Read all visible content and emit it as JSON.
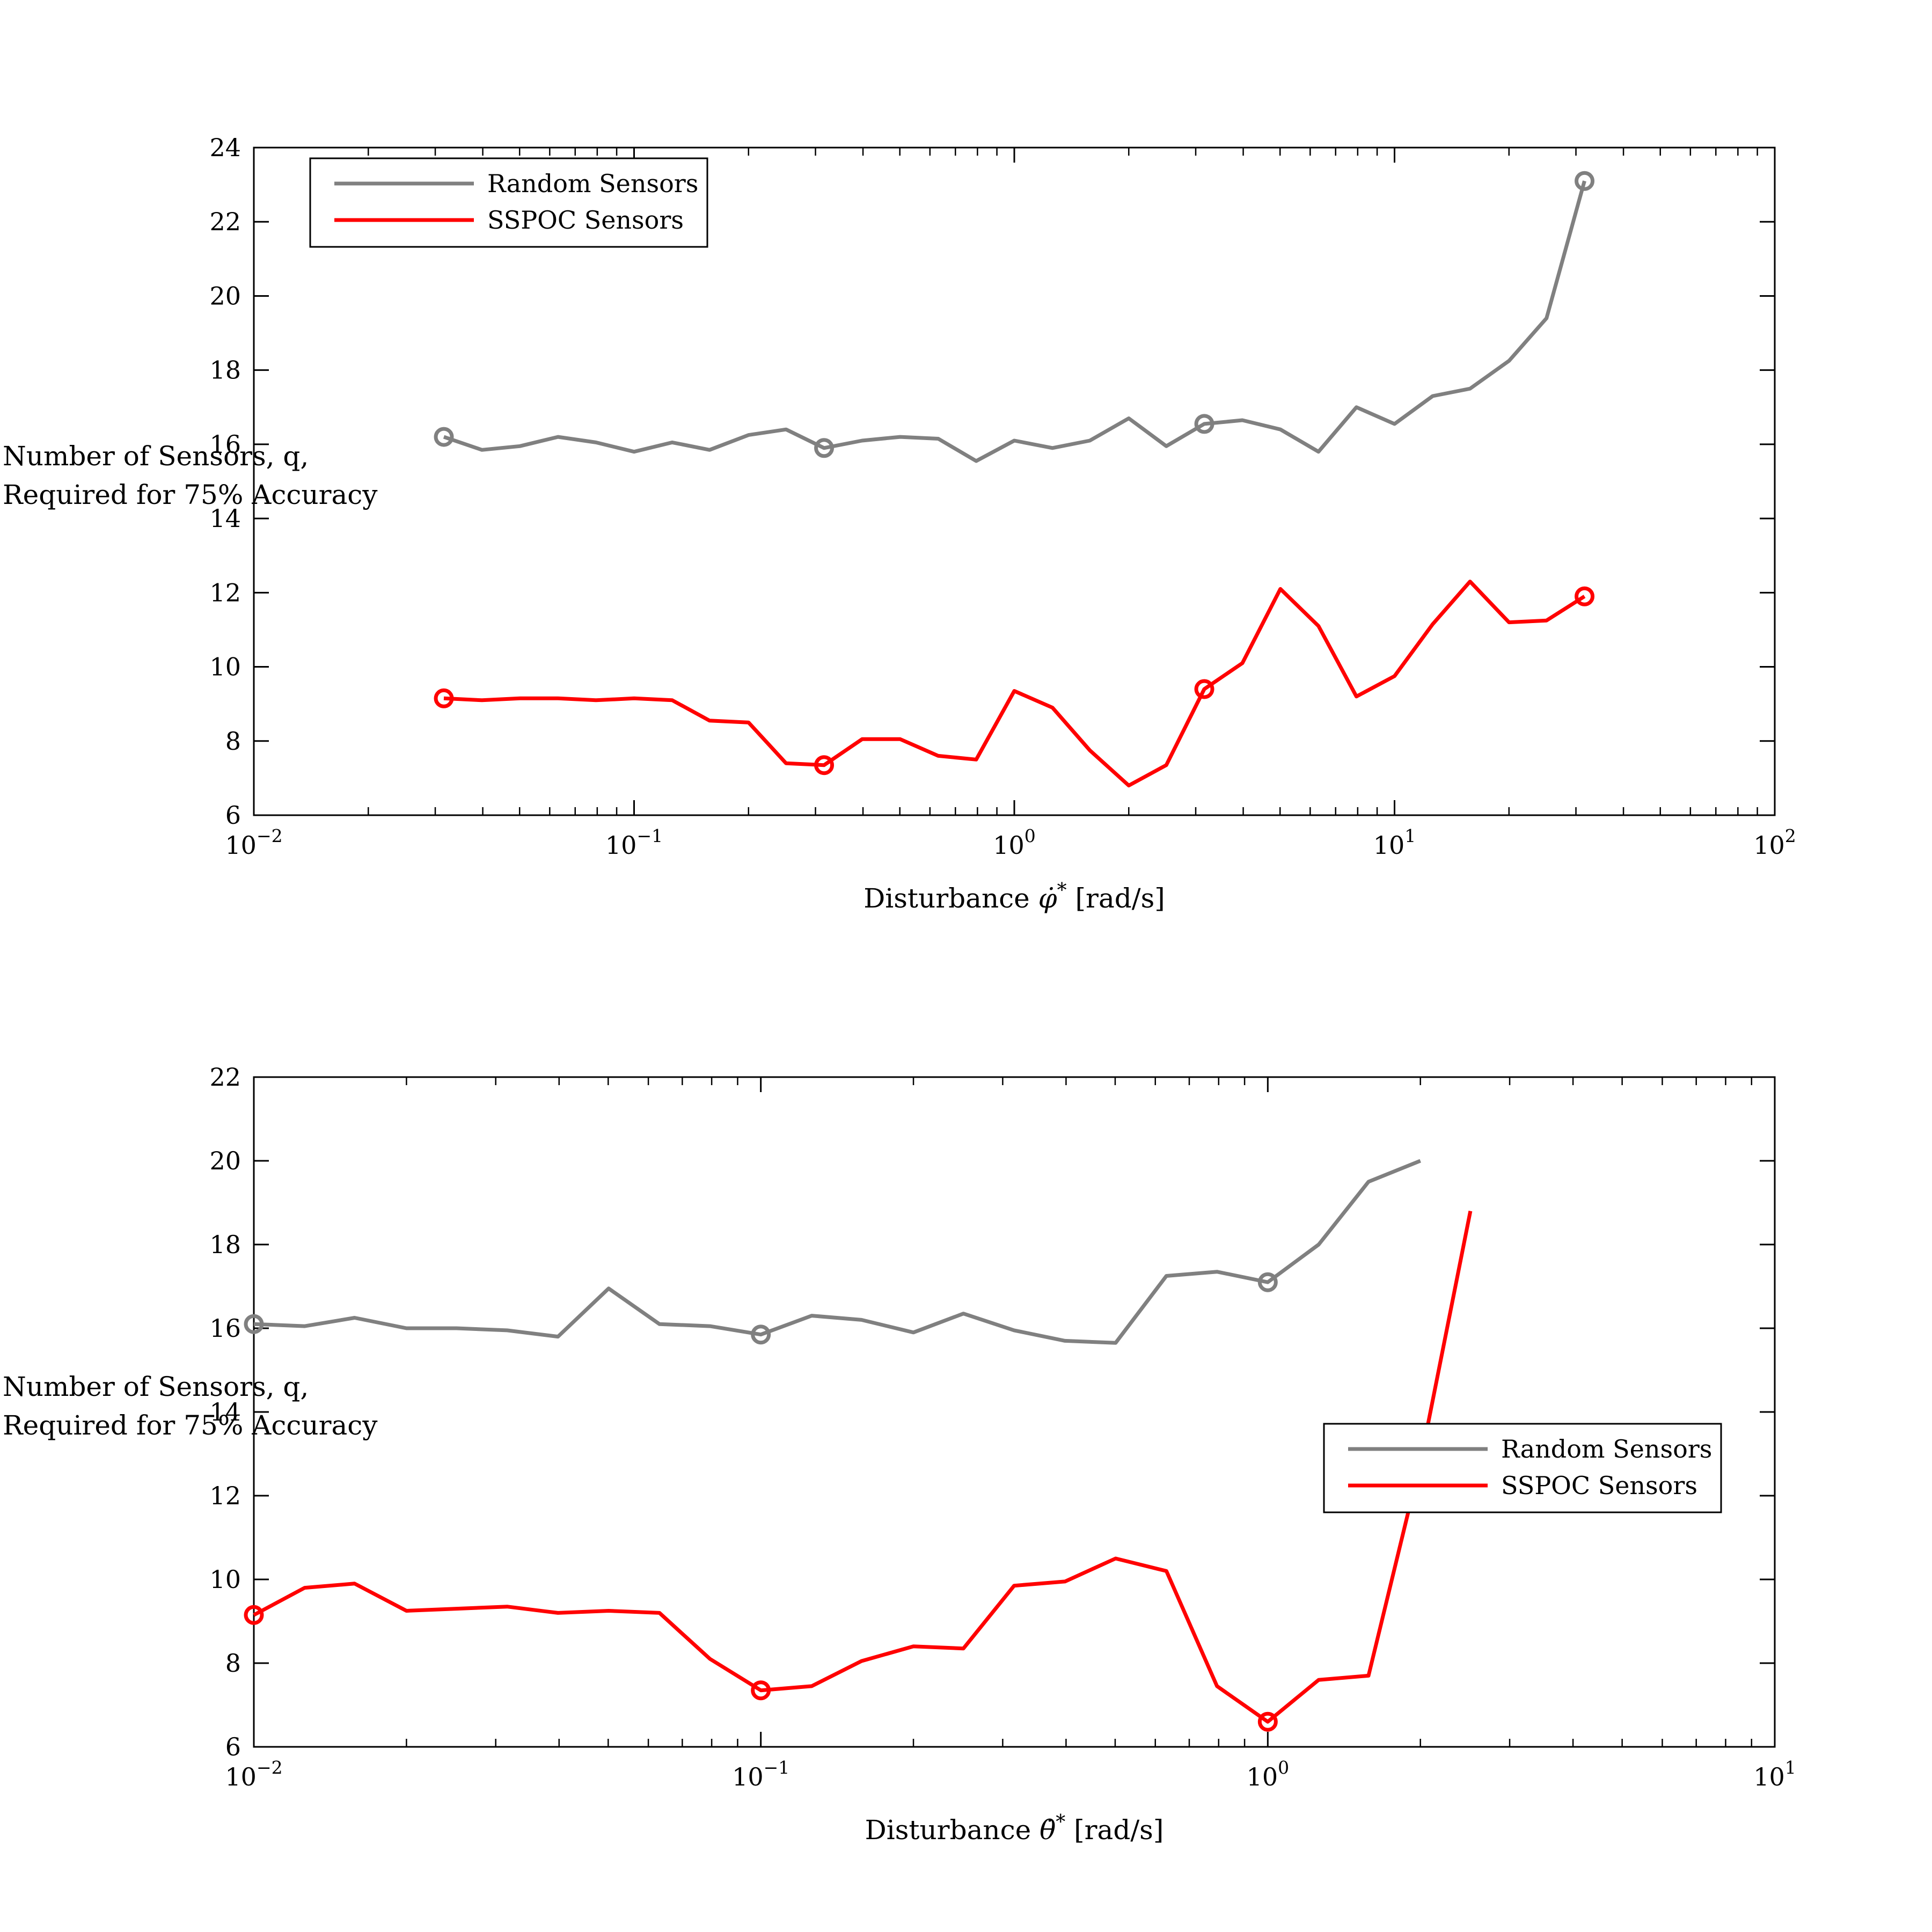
{
  "chart_data": [
    {
      "type": "line",
      "xscale": "log",
      "xlim": [
        0.01,
        100
      ],
      "ylim": [
        6,
        24
      ],
      "yticks": [
        6,
        8,
        10,
        12,
        14,
        16,
        18,
        20,
        22,
        24
      ],
      "xticks": [
        {
          "value": 0.01,
          "label": "10",
          "exp": "−2"
        },
        {
          "value": 0.1,
          "label": "10",
          "exp": "−1"
        },
        {
          "value": 1,
          "label": "10",
          "exp": "0"
        },
        {
          "value": 10,
          "label": "10",
          "exp": "1"
        },
        {
          "value": 100,
          "label": "10",
          "exp": "2"
        }
      ],
      "xlabel": {
        "text": "Disturbance ",
        "symbol": "φ̇",
        "sup": "*",
        "unit": " [rad/s]"
      },
      "ylabel": [
        "Number of Sensors, q,",
        "Required for 75% Accuracy"
      ],
      "legend_position": "top-left",
      "grid": false,
      "series": [
        {
          "name": "Random Sensors",
          "color": "#808080",
          "x": [
            0.0316,
            0.0398,
            0.0501,
            0.0631,
            0.0794,
            0.1,
            0.126,
            0.158,
            0.2,
            0.251,
            0.316,
            0.398,
            0.501,
            0.631,
            0.794,
            1.0,
            1.26,
            1.58,
            2.0,
            2.51,
            3.16,
            3.98,
            5.01,
            6.31,
            7.94,
            10.0,
            12.6,
            15.8,
            20.0,
            25.1,
            31.6
          ],
          "y": [
            16.2,
            15.85,
            15.95,
            16.2,
            16.05,
            15.8,
            16.05,
            15.85,
            16.25,
            16.4,
            15.9,
            16.1,
            16.2,
            16.15,
            15.55,
            16.1,
            15.9,
            16.1,
            16.7,
            15.95,
            16.55,
            16.65,
            16.4,
            15.8,
            17.0,
            16.55,
            17.3,
            17.5,
            18.25,
            19.4,
            23.1
          ],
          "markers": [
            0.0316,
            0.316,
            3.16,
            31.6
          ]
        },
        {
          "name": "SSPOC Sensors",
          "color": "#ff0000",
          "x": [
            0.0316,
            0.0398,
            0.0501,
            0.0631,
            0.0794,
            0.1,
            0.126,
            0.158,
            0.2,
            0.251,
            0.316,
            0.398,
            0.501,
            0.631,
            0.794,
            1.0,
            1.26,
            1.58,
            2.0,
            2.51,
            3.16,
            3.98,
            5.01,
            6.31,
            7.94,
            10.0,
            12.6,
            15.8,
            20.0,
            25.1,
            31.6
          ],
          "y": [
            9.15,
            9.1,
            9.15,
            9.15,
            9.1,
            9.15,
            9.1,
            8.55,
            8.5,
            7.4,
            7.35,
            8.05,
            8.05,
            7.6,
            7.5,
            9.35,
            8.9,
            7.75,
            6.8,
            7.35,
            9.4,
            10.1,
            12.1,
            11.1,
            9.2,
            9.75,
            11.15,
            12.3,
            11.2,
            11.25,
            11.9
          ],
          "markers": [
            0.0316,
            0.316,
            3.16,
            31.6
          ]
        }
      ]
    },
    {
      "type": "line",
      "xscale": "log",
      "xlim": [
        0.01,
        10
      ],
      "ylim": [
        6,
        22
      ],
      "yticks": [
        6,
        8,
        10,
        12,
        14,
        16,
        18,
        20,
        22
      ],
      "xticks": [
        {
          "value": 0.01,
          "label": "10",
          "exp": "−2"
        },
        {
          "value": 0.1,
          "label": "10",
          "exp": "−1"
        },
        {
          "value": 1,
          "label": "10",
          "exp": "0"
        },
        {
          "value": 10,
          "label": "10",
          "exp": "1"
        }
      ],
      "xlabel": {
        "text": "Disturbance ",
        "symbol": "θ̇",
        "sup": "*",
        "unit": " [rad/s]"
      },
      "ylabel": [
        "Number of Sensors, q,",
        "Required for 75% Accuracy"
      ],
      "legend_position": "middle-right",
      "grid": false,
      "series": [
        {
          "name": "Random Sensors",
          "color": "#808080",
          "x": [
            0.01,
            0.0126,
            0.0158,
            0.02,
            0.0251,
            0.0316,
            0.0398,
            0.0501,
            0.0631,
            0.0794,
            0.1,
            0.126,
            0.158,
            0.2,
            0.251,
            0.316,
            0.398,
            0.501,
            0.631,
            0.794,
            1.0,
            1.26,
            1.58,
            2.0
          ],
          "y": [
            16.1,
            16.05,
            16.25,
            16.0,
            16.0,
            15.95,
            15.8,
            16.95,
            16.1,
            16.05,
            15.85,
            16.3,
            16.2,
            15.9,
            16.35,
            15.95,
            15.7,
            15.65,
            17.25,
            17.35,
            17.1,
            18.0,
            19.5,
            20.0
          ],
          "markers": [
            0.01,
            0.1,
            1.0
          ]
        },
        {
          "name": "SSPOC Sensors",
          "color": "#ff0000",
          "x": [
            0.01,
            0.0126,
            0.0158,
            0.02,
            0.0251,
            0.0316,
            0.0398,
            0.0501,
            0.0631,
            0.0794,
            0.1,
            0.126,
            0.158,
            0.2,
            0.251,
            0.316,
            0.398,
            0.501,
            0.631,
            0.794,
            1.0,
            1.26,
            1.58,
            2.0,
            2.51
          ],
          "y": [
            9.15,
            9.8,
            9.9,
            9.25,
            9.3,
            9.35,
            9.2,
            9.25,
            9.2,
            8.1,
            7.35,
            7.45,
            8.05,
            8.4,
            8.35,
            9.85,
            9.95,
            10.5,
            10.2,
            7.45,
            6.6,
            7.6,
            7.7,
            12.8,
            18.8
          ],
          "markers": [
            0.01,
            0.1,
            1.0
          ]
        }
      ]
    }
  ]
}
